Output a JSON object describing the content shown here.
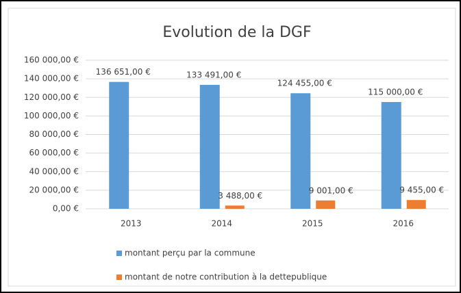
{
  "chart_data": {
    "type": "bar",
    "title": "Evolution de la DGF",
    "categories": [
      "2013",
      "2014",
      "2015",
      "2016"
    ],
    "series": [
      {
        "name": "montant perçu par la commune",
        "color": "#5b9bd5",
        "values": [
          136651,
          133491,
          124455,
          115000
        ],
        "value_labels": [
          "136 651,00 €",
          "133 491,00 €",
          "124 455,00 €",
          "115 000,00 €"
        ]
      },
      {
        "name": "montant de notre contribution à la dettepublique",
        "color": "#ed7d31",
        "values": [
          null,
          3488,
          9001,
          9455
        ],
        "value_labels": [
          null,
          "3 488,00 €",
          "9 001,00 €",
          "9 455,00 €"
        ]
      }
    ],
    "ylim": [
      0,
      160000
    ],
    "yticks": [
      {
        "value": 0,
        "label": "0,00 €"
      },
      {
        "value": 20000,
        "label": "20 000,00 €"
      },
      {
        "value": 40000,
        "label": "40 000,00 €"
      },
      {
        "value": 60000,
        "label": "60 000,00 €"
      },
      {
        "value": 80000,
        "label": "80 000,00 €"
      },
      {
        "value": 100000,
        "label": "100 000,00 €"
      },
      {
        "value": 120000,
        "label": "120 000,00 €"
      },
      {
        "value": 140000,
        "label": "140 000,00 €"
      },
      {
        "value": 160000,
        "label": "160 000,00 €"
      }
    ],
    "grid": true
  }
}
